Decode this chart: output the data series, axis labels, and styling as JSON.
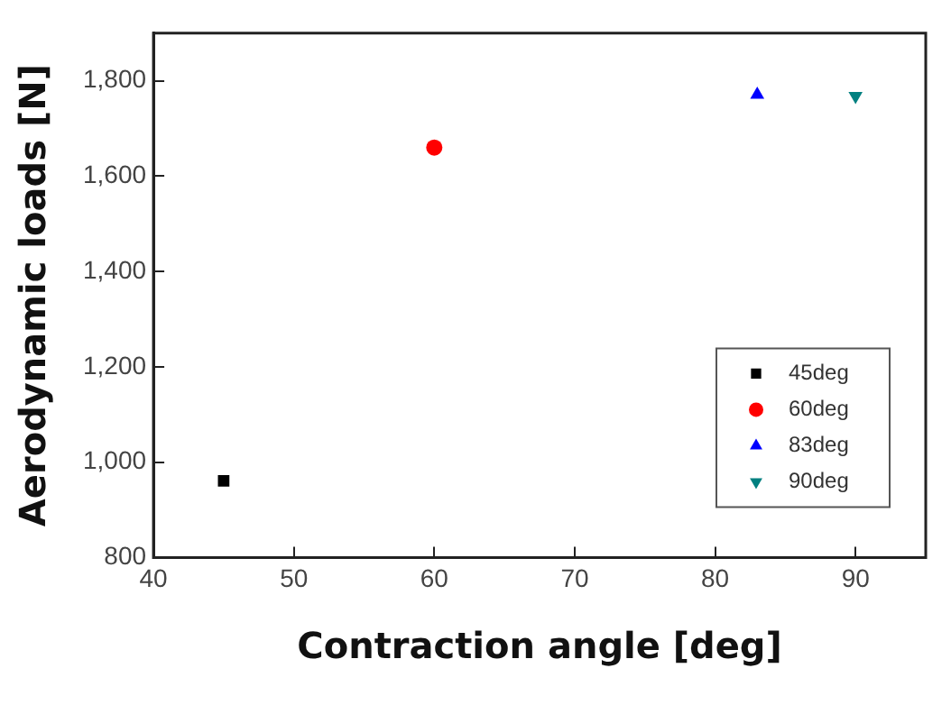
{
  "chart_data": {
    "type": "scatter",
    "xlabel": "Contraction angle [deg]",
    "ylabel": "Aerodynamic loads [N]",
    "xlim": [
      40,
      95
    ],
    "xticks": [
      40,
      50,
      60,
      70,
      80,
      90
    ],
    "ylim": [
      800,
      1900
    ],
    "yticks": [
      800,
      {
        "value": 1000,
        "label": "1,000"
      },
      {
        "value": 1200,
        "label": "1,200"
      },
      {
        "value": 1400,
        "label": "1,400"
      },
      {
        "value": 1600,
        "label": "1,600"
      },
      {
        "value": 1800,
        "label": "1,800"
      }
    ],
    "grid": false,
    "legend": "bottom right",
    "series": [
      {
        "name": "45deg",
        "color": "#000000",
        "marker": "square",
        "x": [
          45
        ],
        "values": [
          961
        ]
      },
      {
        "name": "60deg",
        "color": "#ff0000",
        "marker": "circle",
        "x": [
          60
        ],
        "values": [
          1660
        ]
      },
      {
        "name": "83deg",
        "color": "#0000ff",
        "marker": "triangle",
        "x": [
          83
        ],
        "values": [
          1771
        ]
      },
      {
        "name": "90deg",
        "color": "#008080",
        "marker": "triangle-down",
        "x": [
          90
        ],
        "values": [
          1768
        ]
      }
    ]
  }
}
